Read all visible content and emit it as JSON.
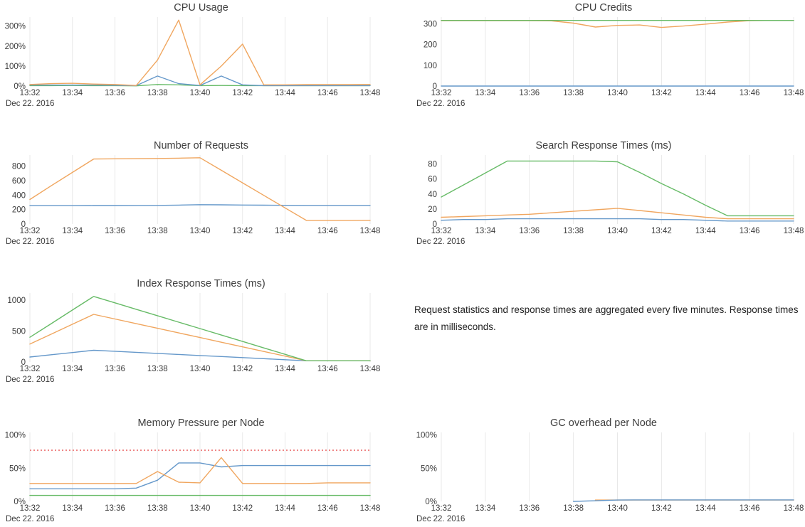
{
  "note": {
    "text": "Request statistics and response times are aggregated every five minutes. Response times are in milliseconds."
  },
  "date_label": "Dec 22. 2016",
  "x_tick_labels": [
    "13:32",
    "13:34",
    "13:36",
    "13:38",
    "13:40",
    "13:42",
    "13:44",
    "13:46",
    "13:48"
  ],
  "colors": {
    "blue": "#6598ca",
    "orange": "#f0a65f",
    "green": "#67bb67",
    "red": "#ee8383",
    "grid": "#e8e8e8",
    "tick_text": "#3b3b3b",
    "title_text": "#3e3e3e"
  },
  "chart_data": [
    {
      "type": "line",
      "title": "CPU Usage",
      "x_start": "13:32",
      "x_end": "13:48",
      "x_step": "1m",
      "ylim": [
        0,
        345
      ],
      "yticks": [
        0,
        100,
        200,
        300
      ],
      "ytick_suffix": "%",
      "grid": "vertical",
      "legend": "none",
      "series": [
        {
          "name": "green",
          "color": "green",
          "values": [
            2,
            2,
            3,
            2,
            2,
            1,
            8,
            6,
            2,
            3,
            2,
            2,
            2,
            2,
            2,
            2,
            2
          ]
        },
        {
          "name": "blue",
          "color": "blue",
          "values": [
            5,
            5,
            5,
            5,
            4,
            2,
            50,
            12,
            3,
            50,
            6,
            2,
            2,
            2,
            2,
            2,
            2
          ]
        },
        {
          "name": "orange",
          "color": "orange",
          "values": [
            8,
            12,
            14,
            10,
            8,
            3,
            130,
            330,
            6,
            100,
            210,
            6,
            6,
            7,
            7,
            7,
            8
          ]
        }
      ]
    },
    {
      "type": "line",
      "title": "CPU Credits",
      "x_start": "13:32",
      "x_end": "13:48",
      "x_step": "1m",
      "ylim": [
        0,
        332
      ],
      "yticks": [
        0,
        100,
        200,
        300
      ],
      "ytick_suffix": "",
      "grid": "vertical",
      "legend": "none",
      "series": [
        {
          "name": "blue",
          "color": "blue",
          "values": [
            0,
            0,
            0,
            0,
            0,
            0,
            0,
            0,
            0,
            0,
            0,
            0,
            0,
            0,
            0,
            0,
            0
          ]
        },
        {
          "name": "orange",
          "color": "orange",
          "values": [
            315,
            315,
            315,
            315,
            315,
            314,
            303,
            284,
            292,
            294,
            282,
            289,
            298,
            308,
            315,
            316,
            316
          ]
        },
        {
          "name": "green",
          "color": "green",
          "values": [
            316,
            316,
            316,
            316,
            316,
            316,
            316,
            316,
            316,
            316,
            316,
            316,
            316,
            316,
            316,
            316,
            316
          ]
        }
      ]
    },
    {
      "type": "line",
      "title": "Number of Requests",
      "x_start": "13:32",
      "x_end": "13:48",
      "x_step": "1m",
      "ylim": [
        0,
        955
      ],
      "yticks": [
        0,
        200,
        400,
        600,
        800
      ],
      "ytick_suffix": "",
      "grid": "vertical",
      "legend": "none",
      "series": [
        {
          "name": "blue",
          "color": "blue",
          "values": [
            255,
            255,
            255,
            256,
            256,
            257,
            258,
            262,
            268,
            266,
            263,
            261,
            259,
            258,
            258,
            258,
            258
          ]
        },
        {
          "name": "orange",
          "color": "orange",
          "values": [
            340,
            530,
            715,
            900,
            903,
            905,
            908,
            912,
            918,
            744,
            570,
            397,
            223,
            50,
            50,
            50,
            52
          ]
        }
      ]
    },
    {
      "type": "line",
      "title": "Search Response Times (ms)",
      "x_start": "13:32",
      "x_end": "13:48",
      "x_step": "1m",
      "ylim": [
        0,
        92
      ],
      "yticks": [
        0,
        20,
        40,
        60,
        80
      ],
      "ytick_suffix": "",
      "grid": "vertical",
      "legend": "none",
      "series": [
        {
          "name": "blue",
          "color": "blue",
          "values": [
            5,
            6,
            6,
            7,
            7,
            7,
            7,
            7,
            7,
            7,
            6,
            6,
            5,
            4,
            4,
            4,
            4
          ]
        },
        {
          "name": "orange",
          "color": "orange",
          "values": [
            9,
            10,
            11,
            12,
            13,
            15,
            17,
            19,
            21,
            18,
            15,
            12,
            9,
            7,
            7,
            7,
            7
          ]
        },
        {
          "name": "green",
          "color": "green",
          "values": [
            36,
            52,
            68,
            84,
            84,
            84,
            84,
            84,
            83,
            69,
            54,
            40,
            25,
            11,
            11,
            11,
            11
          ]
        }
      ]
    },
    {
      "type": "line",
      "title": "Index Response Times (ms)",
      "x_start": "13:32",
      "x_end": "13:48",
      "x_step": "1m",
      "ylim": [
        0,
        1115
      ],
      "yticks": [
        0,
        500,
        1000
      ],
      "ytick_suffix": "",
      "grid": "vertical",
      "legend": "none",
      "series": [
        {
          "name": "blue",
          "color": "blue",
          "values": [
            80,
            117,
            153,
            190,
            173,
            156,
            139,
            122,
            105,
            88,
            71,
            54,
            37,
            20,
            20,
            20,
            20
          ]
        },
        {
          "name": "orange",
          "color": "orange",
          "values": [
            290,
            450,
            610,
            770,
            695,
            620,
            545,
            470,
            395,
            320,
            245,
            170,
            95,
            20,
            20,
            20,
            20
          ]
        },
        {
          "name": "green",
          "color": "green",
          "values": [
            400,
            620,
            840,
            1060,
            956,
            852,
            748,
            644,
            540,
            436,
            332,
            228,
            124,
            20,
            20,
            20,
            20
          ]
        }
      ]
    },
    {
      "type": "line",
      "title": "Memory Pressure per Node",
      "x_start": "13:32",
      "x_end": "13:48",
      "x_step": "1m",
      "ylim": [
        0,
        104
      ],
      "yticks": [
        0,
        50,
        100
      ],
      "ytick_suffix": "%",
      "grid": "vertical",
      "legend": "none",
      "threshold": {
        "value": 77,
        "color": "red",
        "style": "dotted"
      },
      "series": [
        {
          "name": "green",
          "color": "green",
          "values": [
            9,
            9,
            9,
            9,
            9,
            9,
            9,
            9,
            9,
            9,
            9,
            9,
            9,
            9,
            9,
            9,
            9
          ]
        },
        {
          "name": "blue",
          "color": "blue",
          "values": [
            19,
            19,
            19,
            19,
            19,
            20,
            32,
            58,
            58,
            52,
            54,
            54,
            54,
            54,
            54,
            54,
            54
          ]
        },
        {
          "name": "orange",
          "color": "orange",
          "values": [
            27,
            27,
            27,
            27,
            27,
            27,
            45,
            29,
            28,
            66,
            27,
            27,
            27,
            27,
            28,
            28,
            28
          ]
        }
      ]
    },
    {
      "type": "line",
      "title": "GC overhead per Node",
      "x_start": "13:32",
      "x_end": "13:48",
      "x_step": "1m",
      "ylim": [
        0,
        104
      ],
      "yticks": [
        0,
        50,
        100
      ],
      "ytick_suffix": "%",
      "grid": "vertical",
      "legend": "none",
      "series": [
        {
          "name": "orange",
          "color": "orange",
          "values": [
            null,
            null,
            null,
            null,
            null,
            null,
            null,
            2,
            2,
            2,
            2,
            2,
            2,
            2,
            2,
            2,
            2
          ]
        },
        {
          "name": "blue",
          "color": "blue",
          "values": [
            null,
            null,
            null,
            null,
            null,
            null,
            0,
            1,
            2,
            2.2,
            2.2,
            2.2,
            2.2,
            2.2,
            2.2,
            2.2,
            2.2
          ]
        }
      ]
    }
  ]
}
